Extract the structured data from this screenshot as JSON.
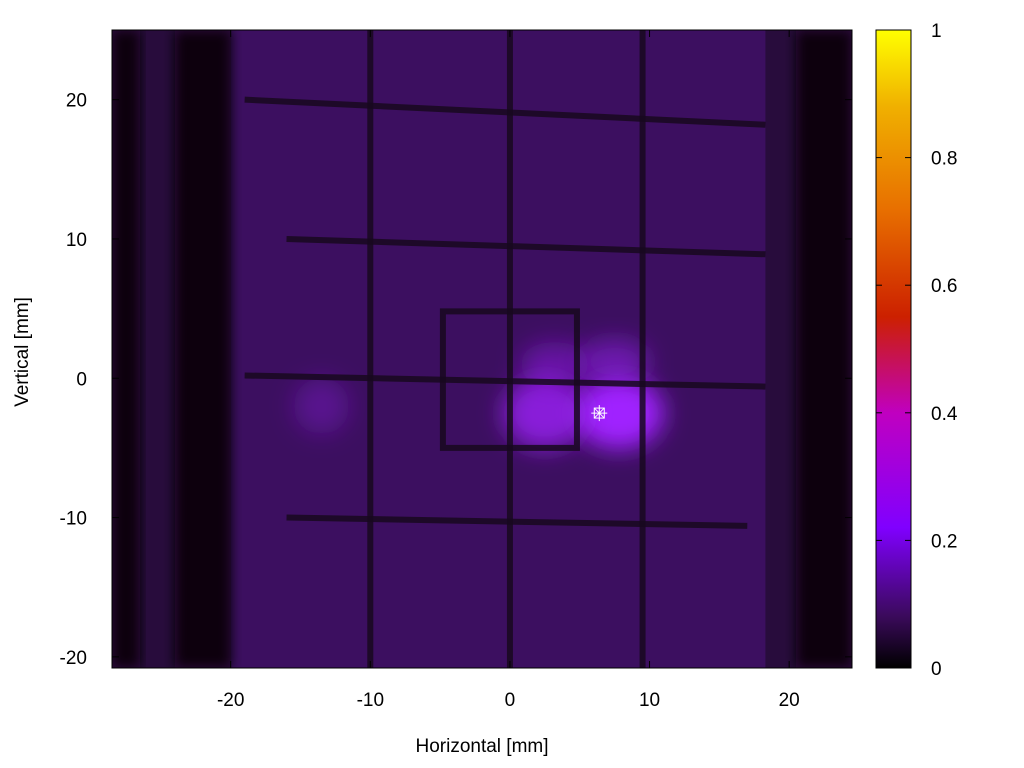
{
  "chart_data": {
    "type": "heatmap",
    "title": "",
    "xlabel": "Horizontal [mm]",
    "ylabel": "Vertical [mm]",
    "xlim": [
      -28.5,
      24.5
    ],
    "ylim": [
      -20.8,
      25.0
    ],
    "x_ticks": [
      -20,
      -10,
      0,
      10,
      20
    ],
    "y_ticks": [
      -20,
      -10,
      0,
      10,
      20
    ],
    "x_tick_labels": [
      "-20",
      "-10",
      "0",
      "10",
      "20"
    ],
    "y_tick_labels": [
      "-20",
      "-10",
      "0",
      "10",
      "20"
    ],
    "colorbar": {
      "min": 0,
      "max": 1,
      "ticks": [
        0,
        0.2,
        0.4,
        0.6,
        0.8,
        1
      ],
      "tick_labels": [
        "0",
        "0.2",
        "0.4",
        "0.6",
        "0.8",
        "1"
      ],
      "palette": [
        "#000000",
        "#3a0a5a",
        "#8000ff",
        "#c000c0",
        "#cc2000",
        "#e87000",
        "#f0b000",
        "#ffff00"
      ]
    },
    "colors": {
      "background": "#280c3c",
      "illuminated_region": "#3c0f60",
      "shadow": "#100210",
      "grid_wire": "#18081e",
      "hot_spot": "#a020ff"
    },
    "illuminated_region": {
      "x": [
        -20,
        18.3
      ],
      "y": [
        -20.8,
        25.0
      ],
      "value": 0.08
    },
    "dark_bands": [
      {
        "x": [
          -28.5,
          -26.5
        ],
        "value": 0.01
      },
      {
        "x": [
          -24,
          -20
        ],
        "value": 0.0
      },
      {
        "x": [
          20.5,
          24.5
        ],
        "value": 0.0
      }
    ],
    "grid_lines_horizontal": [
      {
        "x": [
          -19,
          18.3
        ],
        "y_start": 20,
        "y_end": 18.2
      },
      {
        "x": [
          -16,
          18.3
        ],
        "y_start": 10,
        "y_end": 8.9
      },
      {
        "x": [
          -19,
          18.3
        ],
        "y_start": 0.2,
        "y_end": -0.6
      },
      {
        "x": [
          -16,
          17
        ],
        "y_start": -10,
        "y_end": -10.6
      }
    ],
    "grid_lines_vertical": [
      {
        "x": -10,
        "y": [
          -20.8,
          25.0
        ]
      },
      {
        "x": 0,
        "y": [
          -20.8,
          25.0
        ]
      },
      {
        "x": 9.5,
        "y": [
          -20.8,
          25.0
        ]
      }
    ],
    "inner_square": {
      "x": [
        -4.8,
        4.8
      ],
      "y": [
        -5.0,
        4.8
      ]
    },
    "intensity_spots": [
      {
        "x": 7.8,
        "y": -2.5,
        "sigma_x": 3.2,
        "sigma_y": 2.6,
        "value": 0.34
      },
      {
        "x": 2.5,
        "y": -2.5,
        "sigma_x": 3.0,
        "sigma_y": 2.6,
        "value": 0.26
      },
      {
        "x": 3.2,
        "y": 1.0,
        "sigma_x": 2.5,
        "sigma_y": 1.6,
        "value": 0.14
      },
      {
        "x": 7.5,
        "y": 1.2,
        "sigma_x": 2.5,
        "sigma_y": 1.6,
        "value": 0.16
      },
      {
        "x": -13.5,
        "y": -2.0,
        "sigma_x": 2.0,
        "sigma_y": 2.0,
        "value": 0.1
      }
    ],
    "marker": {
      "x": 6.4,
      "y": -2.5,
      "value": 0.36
    }
  }
}
